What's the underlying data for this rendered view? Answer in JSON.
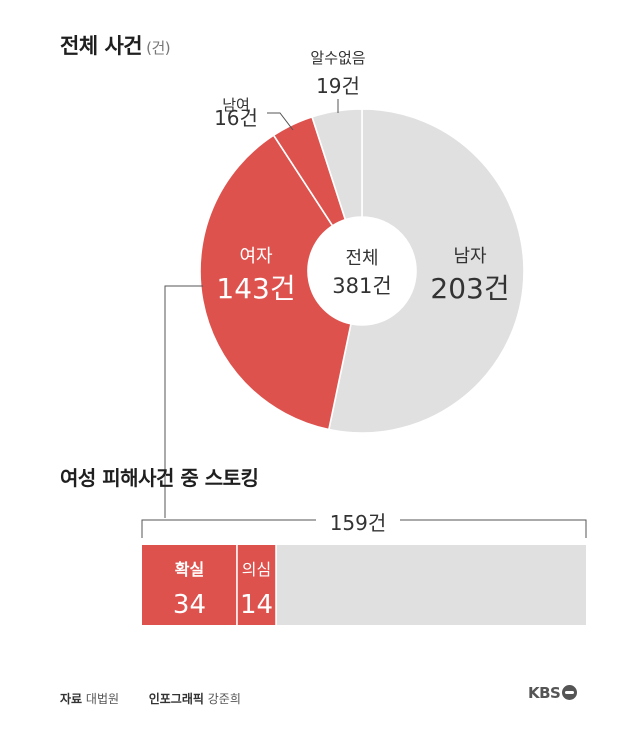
{
  "title": "전체 사건",
  "title_unit": "(건)",
  "chart_data": [
    {
      "type": "pie",
      "variant": "donut",
      "title": "전체 사건",
      "unit": "건",
      "center": {
        "label": "전체",
        "value_text": "381건",
        "total": 381
      },
      "slices": [
        {
          "name": "남자",
          "value": 203,
          "value_text": "203건",
          "color": "#e0e0e0"
        },
        {
          "name": "여자",
          "value": 143,
          "value_text": "143건",
          "color": "#de524e"
        },
        {
          "name": "남여",
          "value": 16,
          "value_text": "16건",
          "color": "#de524e"
        },
        {
          "name": "알수없음",
          "value": 19,
          "value_text": "19건",
          "color": "#e0e0e0"
        }
      ]
    },
    {
      "type": "bar",
      "variant": "stacked-horizontal",
      "title": "여성 피해사건 중 스토킹",
      "total": 159,
      "total_text": "159건",
      "segments": [
        {
          "name": "확실",
          "value": 34,
          "value_text": "34",
          "color": "#de524e"
        },
        {
          "name": "의심",
          "value": 14,
          "value_text": "14",
          "color": "#de524e"
        },
        {
          "name": "",
          "value": 111,
          "color": "#e0e0e0"
        }
      ]
    }
  ],
  "footer": {
    "source_label": "자료",
    "source": "대법원",
    "graphic_label": "인포그래픽",
    "graphic": "강준희",
    "brand": "KBS"
  },
  "colors": {
    "accent": "#de524e",
    "neutral": "#e0e0e0",
    "text": "#333333",
    "connector": "#555555"
  }
}
